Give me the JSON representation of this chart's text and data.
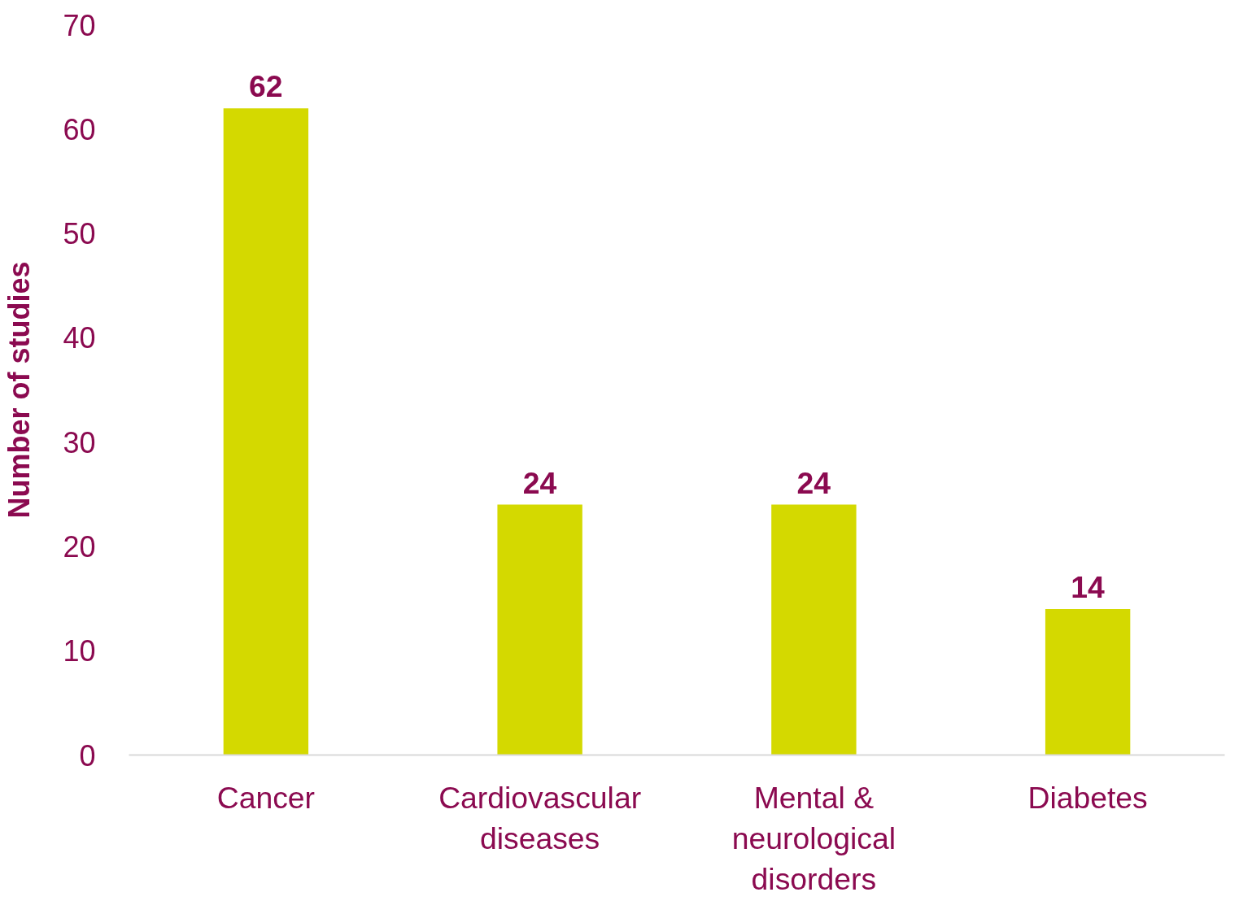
{
  "chart_data": {
    "type": "bar",
    "ylabel": "Number of studies",
    "categories": [
      "Cancer",
      "Cardiovascular diseases",
      "Mental & neurological disorders",
      "Diabetes"
    ],
    "values": [
      62,
      24,
      24,
      14
    ],
    "color": "#d4d900",
    "ylim": [
      0,
      70
    ],
    "yticks": [
      0,
      10,
      20,
      30,
      40,
      50,
      60,
      70
    ],
    "data_labels": true,
    "grid": false
  }
}
